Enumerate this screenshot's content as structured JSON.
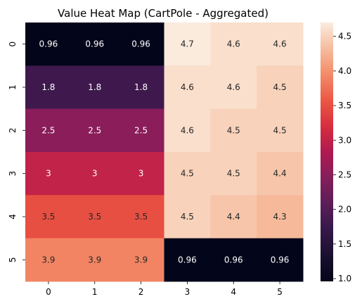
{
  "chart_data": {
    "type": "heatmap",
    "title": "Value Heat Map (CartPole - Aggregated)",
    "xlabel": "",
    "ylabel": "",
    "x_categories": [
      "0",
      "1",
      "2",
      "3",
      "4",
      "5"
    ],
    "y_categories": [
      "0",
      "1",
      "2",
      "3",
      "4",
      "5"
    ],
    "values": [
      [
        0.96,
        0.96,
        0.96,
        4.7,
        4.6,
        4.6
      ],
      [
        1.8,
        1.8,
        1.8,
        4.6,
        4.6,
        4.5
      ],
      [
        2.5,
        2.5,
        2.5,
        4.6,
        4.5,
        4.5
      ],
      [
        3,
        3,
        3,
        4.5,
        4.5,
        4.4
      ],
      [
        3.5,
        3.5,
        3.5,
        4.5,
        4.4,
        4.3
      ],
      [
        3.9,
        3.9,
        3.9,
        0.96,
        0.96,
        0.96
      ]
    ],
    "colorbar": {
      "range": [
        0.96,
        4.7
      ],
      "ticks": [
        "1.0",
        "1.5",
        "2.0",
        "2.5",
        "3.0",
        "3.5",
        "4.0",
        "4.5"
      ],
      "colormap": "rocket"
    }
  }
}
